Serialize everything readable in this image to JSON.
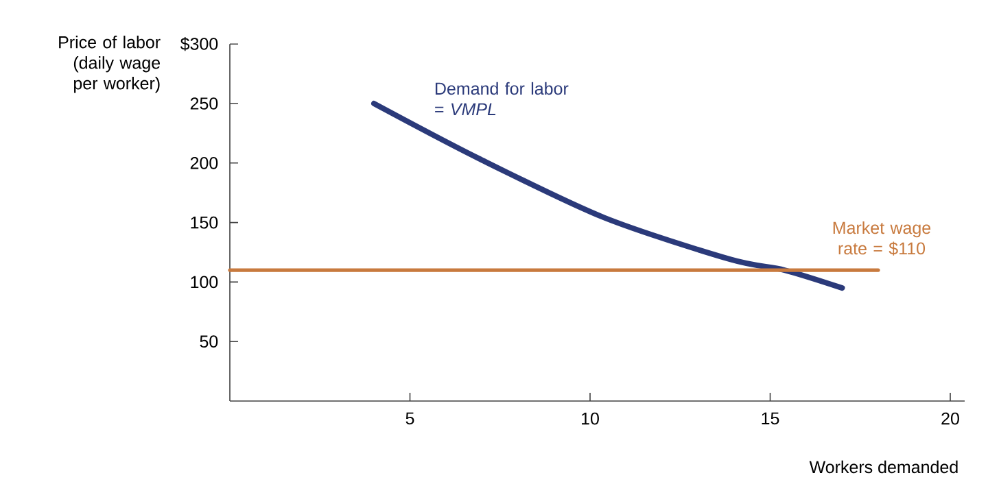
{
  "chart_data": {
    "type": "line",
    "xlabel": "Workers demanded",
    "ylabel": "Price of labor (daily wage per worker)",
    "xlim": [
      0,
      20.4
    ],
    "ylim": [
      0,
      300
    ],
    "xticks": [
      5,
      10,
      15,
      20
    ],
    "yticks": [
      50,
      100,
      150,
      200,
      250,
      {
        "value": 300,
        "label": "$300"
      }
    ],
    "series": [
      {
        "name": "Demand for labor = *VMPL*",
        "color": "#2b3a7a",
        "x": [
          4,
          6.9,
          10.4,
          13.9,
          15.4,
          17
        ],
        "values": [
          250,
          204,
          154,
          119,
          110,
          95
        ]
      },
      {
        "name": "Market wage rate = $110",
        "color": "#c87a3e",
        "x": [
          0,
          18
        ],
        "values": [
          110,
          110
        ]
      }
    ]
  }
}
